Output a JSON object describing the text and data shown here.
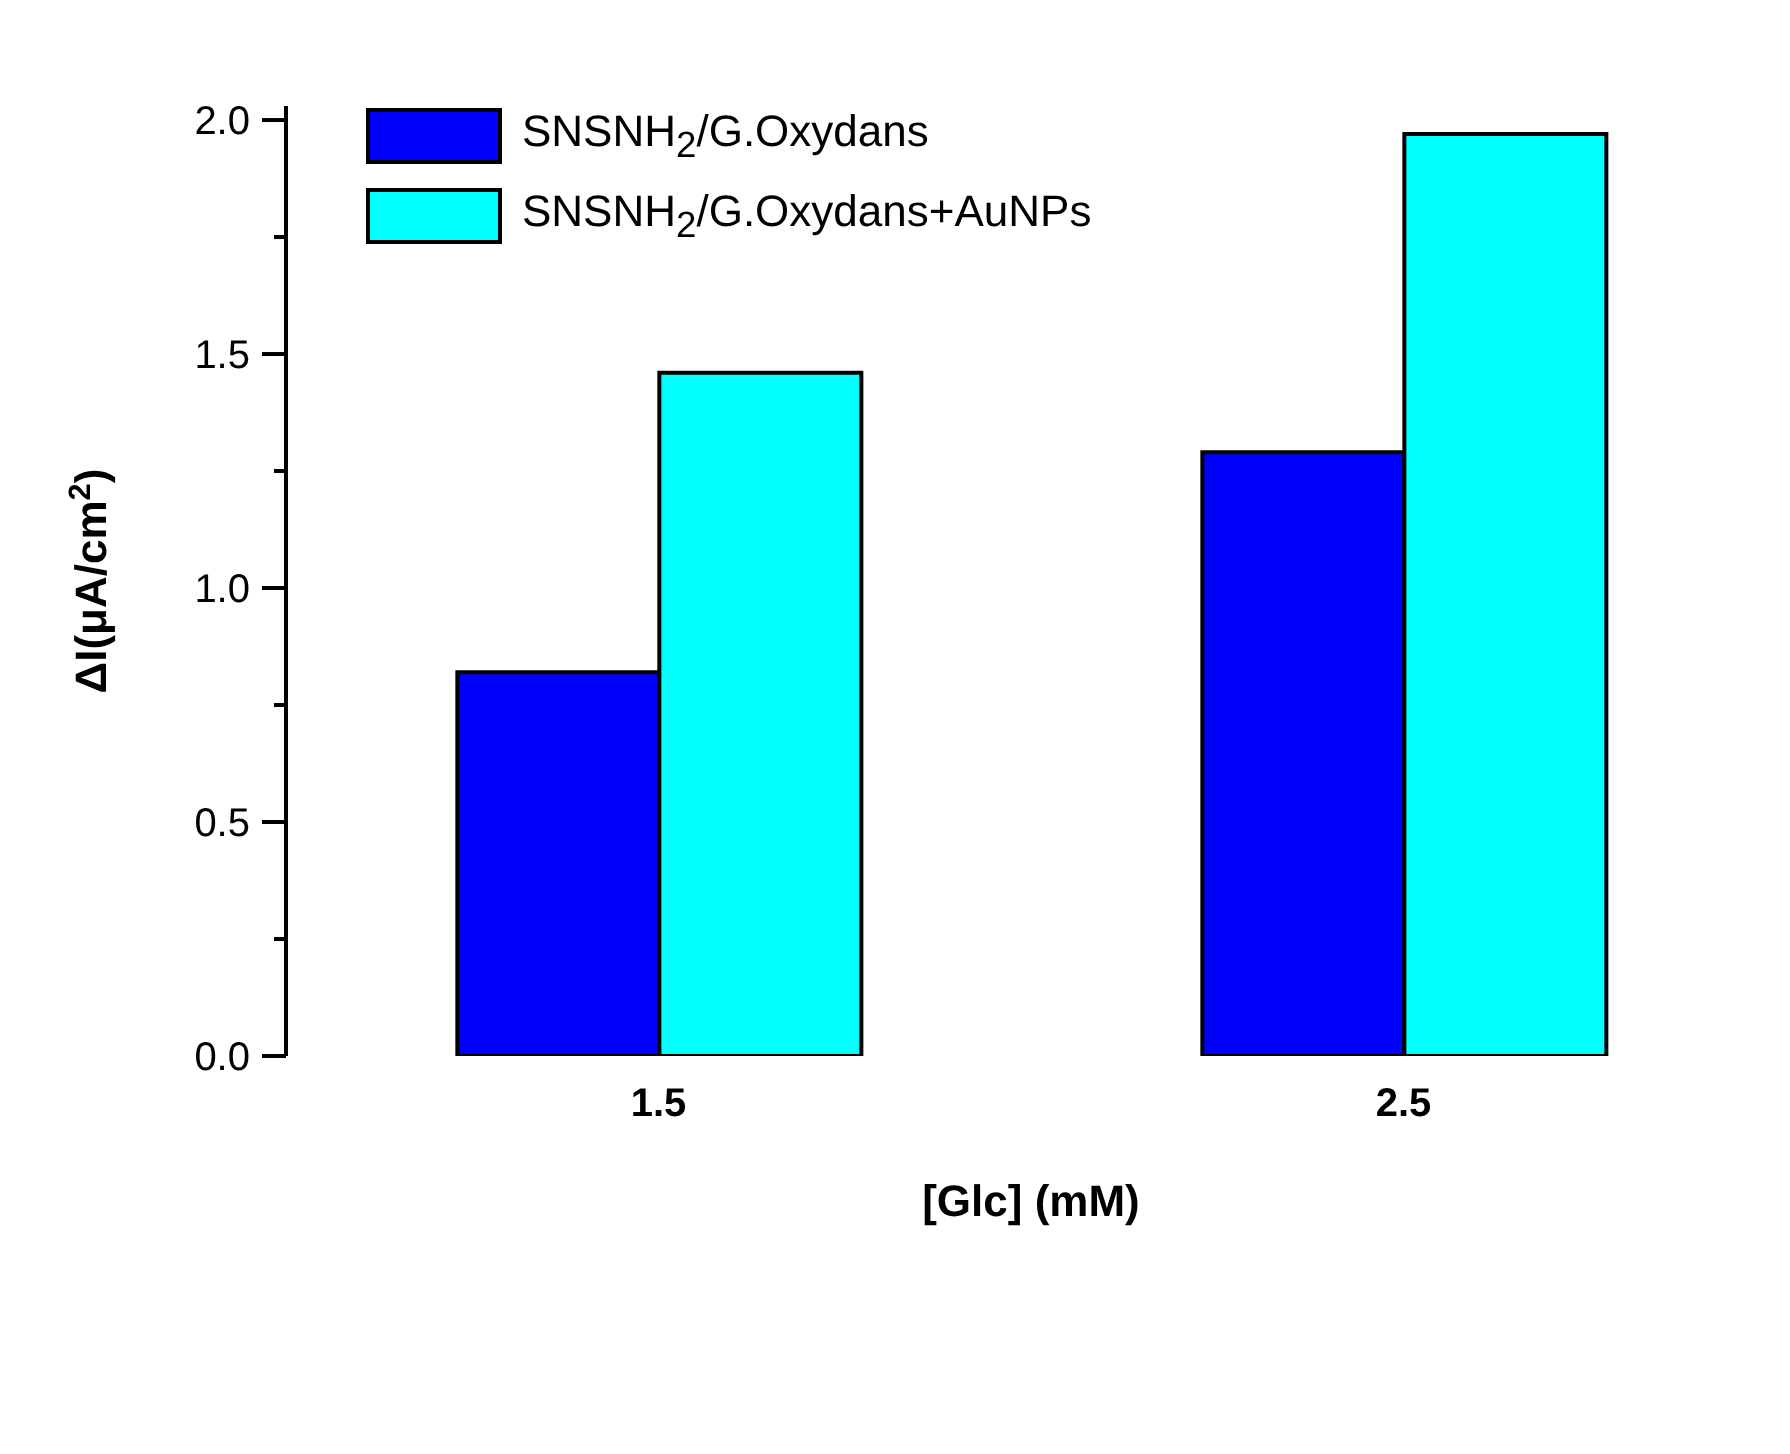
{
  "chart_data": {
    "type": "bar",
    "xlabel": "[Glc] (mM)",
    "ylabel": "ΔI(μA/cm$^{2}$)",
    "categories": [
      "1.5",
      "2.5"
    ],
    "series": [
      {
        "name": "SNSNH$_{2}$/G.Oxydans",
        "color": "#0000ff",
        "values": [
          0.82,
          1.29
        ]
      },
      {
        "name": "SNSNH$_{2}$/G.Oxydans+AuNPs",
        "color": "#00ffff",
        "values": [
          1.46,
          1.97
        ]
      }
    ],
    "ylim": [
      0,
      2.03
    ],
    "yticks": [
      {
        "value": 0,
        "label": "0.0"
      },
      {
        "value": 0.25,
        "label": null
      },
      {
        "value": 0.5,
        "label": "0.5"
      },
      {
        "value": 0.75,
        "label": null
      },
      {
        "value": 1,
        "label": "1.0"
      },
      {
        "value": 1.25,
        "label": null
      },
      {
        "value": 1.5,
        "label": "1.5"
      },
      {
        "value": 1.75,
        "label": null
      },
      {
        "value": 2,
        "label": "2.0"
      }
    ],
    "grid": false,
    "legend": "top left"
  }
}
